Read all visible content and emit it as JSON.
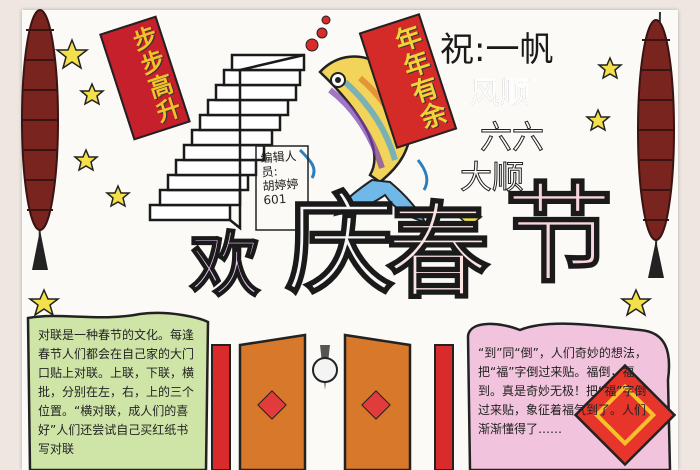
{
  "banners": {
    "left": "步步高升",
    "right": "年年有余"
  },
  "wishes": [
    "祝:一帆",
    "风顺",
    "六六",
    "大顺"
  ],
  "editor": {
    "label": "编辑人员:",
    "name": "胡婷婷",
    "class_no": "601"
  },
  "title": [
    "欢",
    "庆",
    "春",
    "节"
  ],
  "text_left": "对联是一种春节的文化。每逢春节人们都会在自己家的大门口贴上对联。上联，下联，横批，分别在左，右，上的三个位置。“横对联，成人们的喜好”人们还尝试自己买红纸书写对联",
  "text_right": "“到”同“倒”，人们奇妙的想法，把“福”字倒过来贴。福倒，福到。真是奇妙无极！把“福”字倒过来贴，象征着福气到了。人们渐渐懂得了……",
  "colors": {
    "paper": "#fbfaf6",
    "banner_red": "#d42a28",
    "banner_text_gold": "#f1d33a",
    "left_box_green": "#cfe5a8",
    "right_box_pink": "#f2c3dc",
    "door_orange": "#d7782a"
  }
}
